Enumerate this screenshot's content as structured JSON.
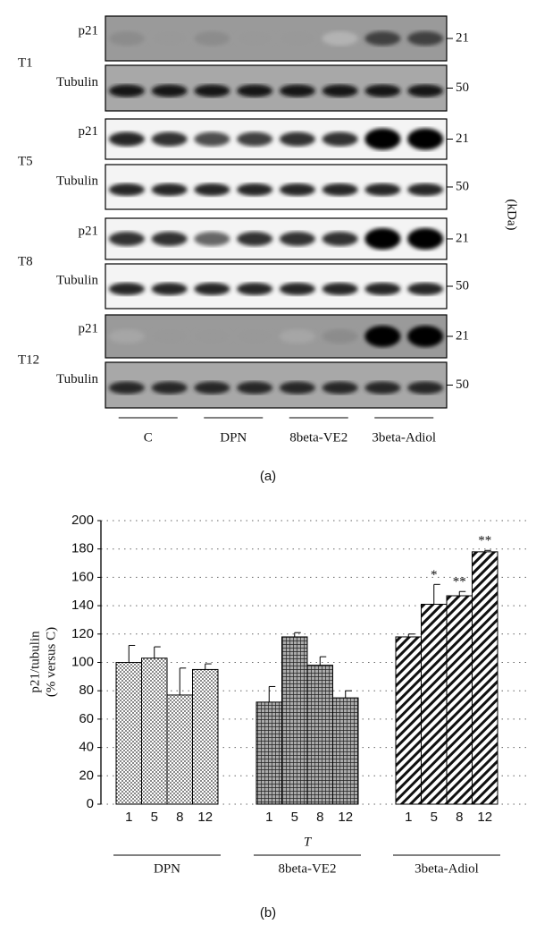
{
  "panel_a": {
    "rows": [
      {
        "time": "T1",
        "blots": [
          {
            "protein": "p21",
            "kda": "21"
          },
          {
            "protein": "Tubulin",
            "kda": "50"
          }
        ]
      },
      {
        "time": "T5",
        "blots": [
          {
            "protein": "p21",
            "kda": "21"
          },
          {
            "protein": "Tubulin",
            "kda": "50"
          }
        ]
      },
      {
        "time": "T8",
        "blots": [
          {
            "protein": "p21",
            "kda": "21"
          },
          {
            "protein": "Tubulin",
            "kda": "50"
          }
        ]
      },
      {
        "time": "T12",
        "blots": [
          {
            "protein": "p21",
            "kda": "21"
          },
          {
            "protein": "Tubulin",
            "kda": "50"
          }
        ]
      }
    ],
    "unit": "(kDa)",
    "groups": [
      "C",
      "DPN",
      "8beta-VE2",
      "3beta-Adiol"
    ],
    "caption": "(a)"
  },
  "chart_data": {
    "type": "bar",
    "ylabel": [
      "p21/tubulin",
      "(% versus C)"
    ],
    "xlabel": "T",
    "categories": [
      "1",
      "5",
      "8",
      "12"
    ],
    "series": [
      {
        "name": "DPN",
        "pattern": "dots",
        "values": [
          100,
          103,
          77,
          95
        ],
        "errors": [
          12,
          8,
          19,
          4
        ],
        "annotations": [
          null,
          null,
          null,
          null
        ]
      },
      {
        "name": "8beta-VE2",
        "pattern": "crosshatch",
        "values": [
          72,
          118,
          98,
          75
        ],
        "errors": [
          11,
          3,
          6,
          5
        ],
        "annotations": [
          null,
          null,
          null,
          null
        ]
      },
      {
        "name": "3beta-Adiol",
        "pattern": "diagonal",
        "values": [
          118,
          141,
          147,
          178
        ],
        "errors": [
          2,
          14,
          3,
          1
        ],
        "annotations": [
          null,
          "*",
          "**",
          "**"
        ]
      }
    ],
    "ylim": [
      0,
      200
    ],
    "yticks": [
      0,
      20,
      40,
      60,
      80,
      100,
      120,
      140,
      160,
      180,
      200
    ],
    "grid": true,
    "caption": "(b)"
  }
}
